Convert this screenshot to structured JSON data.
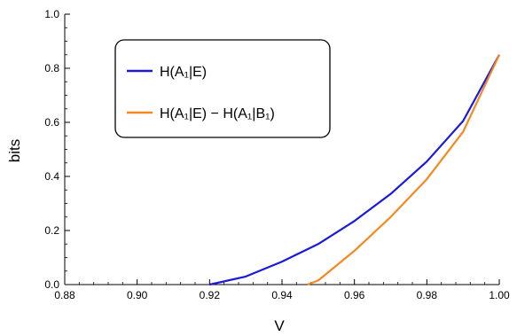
{
  "chart_data": {
    "type": "line",
    "xlabel": "V",
    "ylabel": "bits",
    "xlim": [
      0.88,
      1.0
    ],
    "ylim": [
      0.0,
      1.0
    ],
    "x_ticks": [
      "0.88",
      "0.90",
      "0.92",
      "0.94",
      "0.96",
      "0.98",
      "1.00"
    ],
    "y_ticks": [
      "0.0",
      "0.2",
      "0.4",
      "0.6",
      "0.8",
      "1.0"
    ],
    "grid": false,
    "legend_placement": "top-left",
    "series": [
      {
        "name": "H(A₁|E)",
        "color": "#1a1adb",
        "x": [
          0.92,
          0.93,
          0.94,
          0.95,
          0.96,
          0.97,
          0.98,
          0.99,
          1.0
        ],
        "y": [
          0.0,
          0.03,
          0.085,
          0.15,
          0.235,
          0.335,
          0.455,
          0.605,
          0.85
        ]
      },
      {
        "name": "H(A₁|E) − H(A₁|B₁)",
        "color": "#f5881e",
        "x": [
          0.947,
          0.95,
          0.96,
          0.97,
          0.98,
          0.99,
          1.0
        ],
        "y": [
          0.0,
          0.015,
          0.125,
          0.25,
          0.39,
          0.565,
          0.85
        ]
      }
    ]
  }
}
